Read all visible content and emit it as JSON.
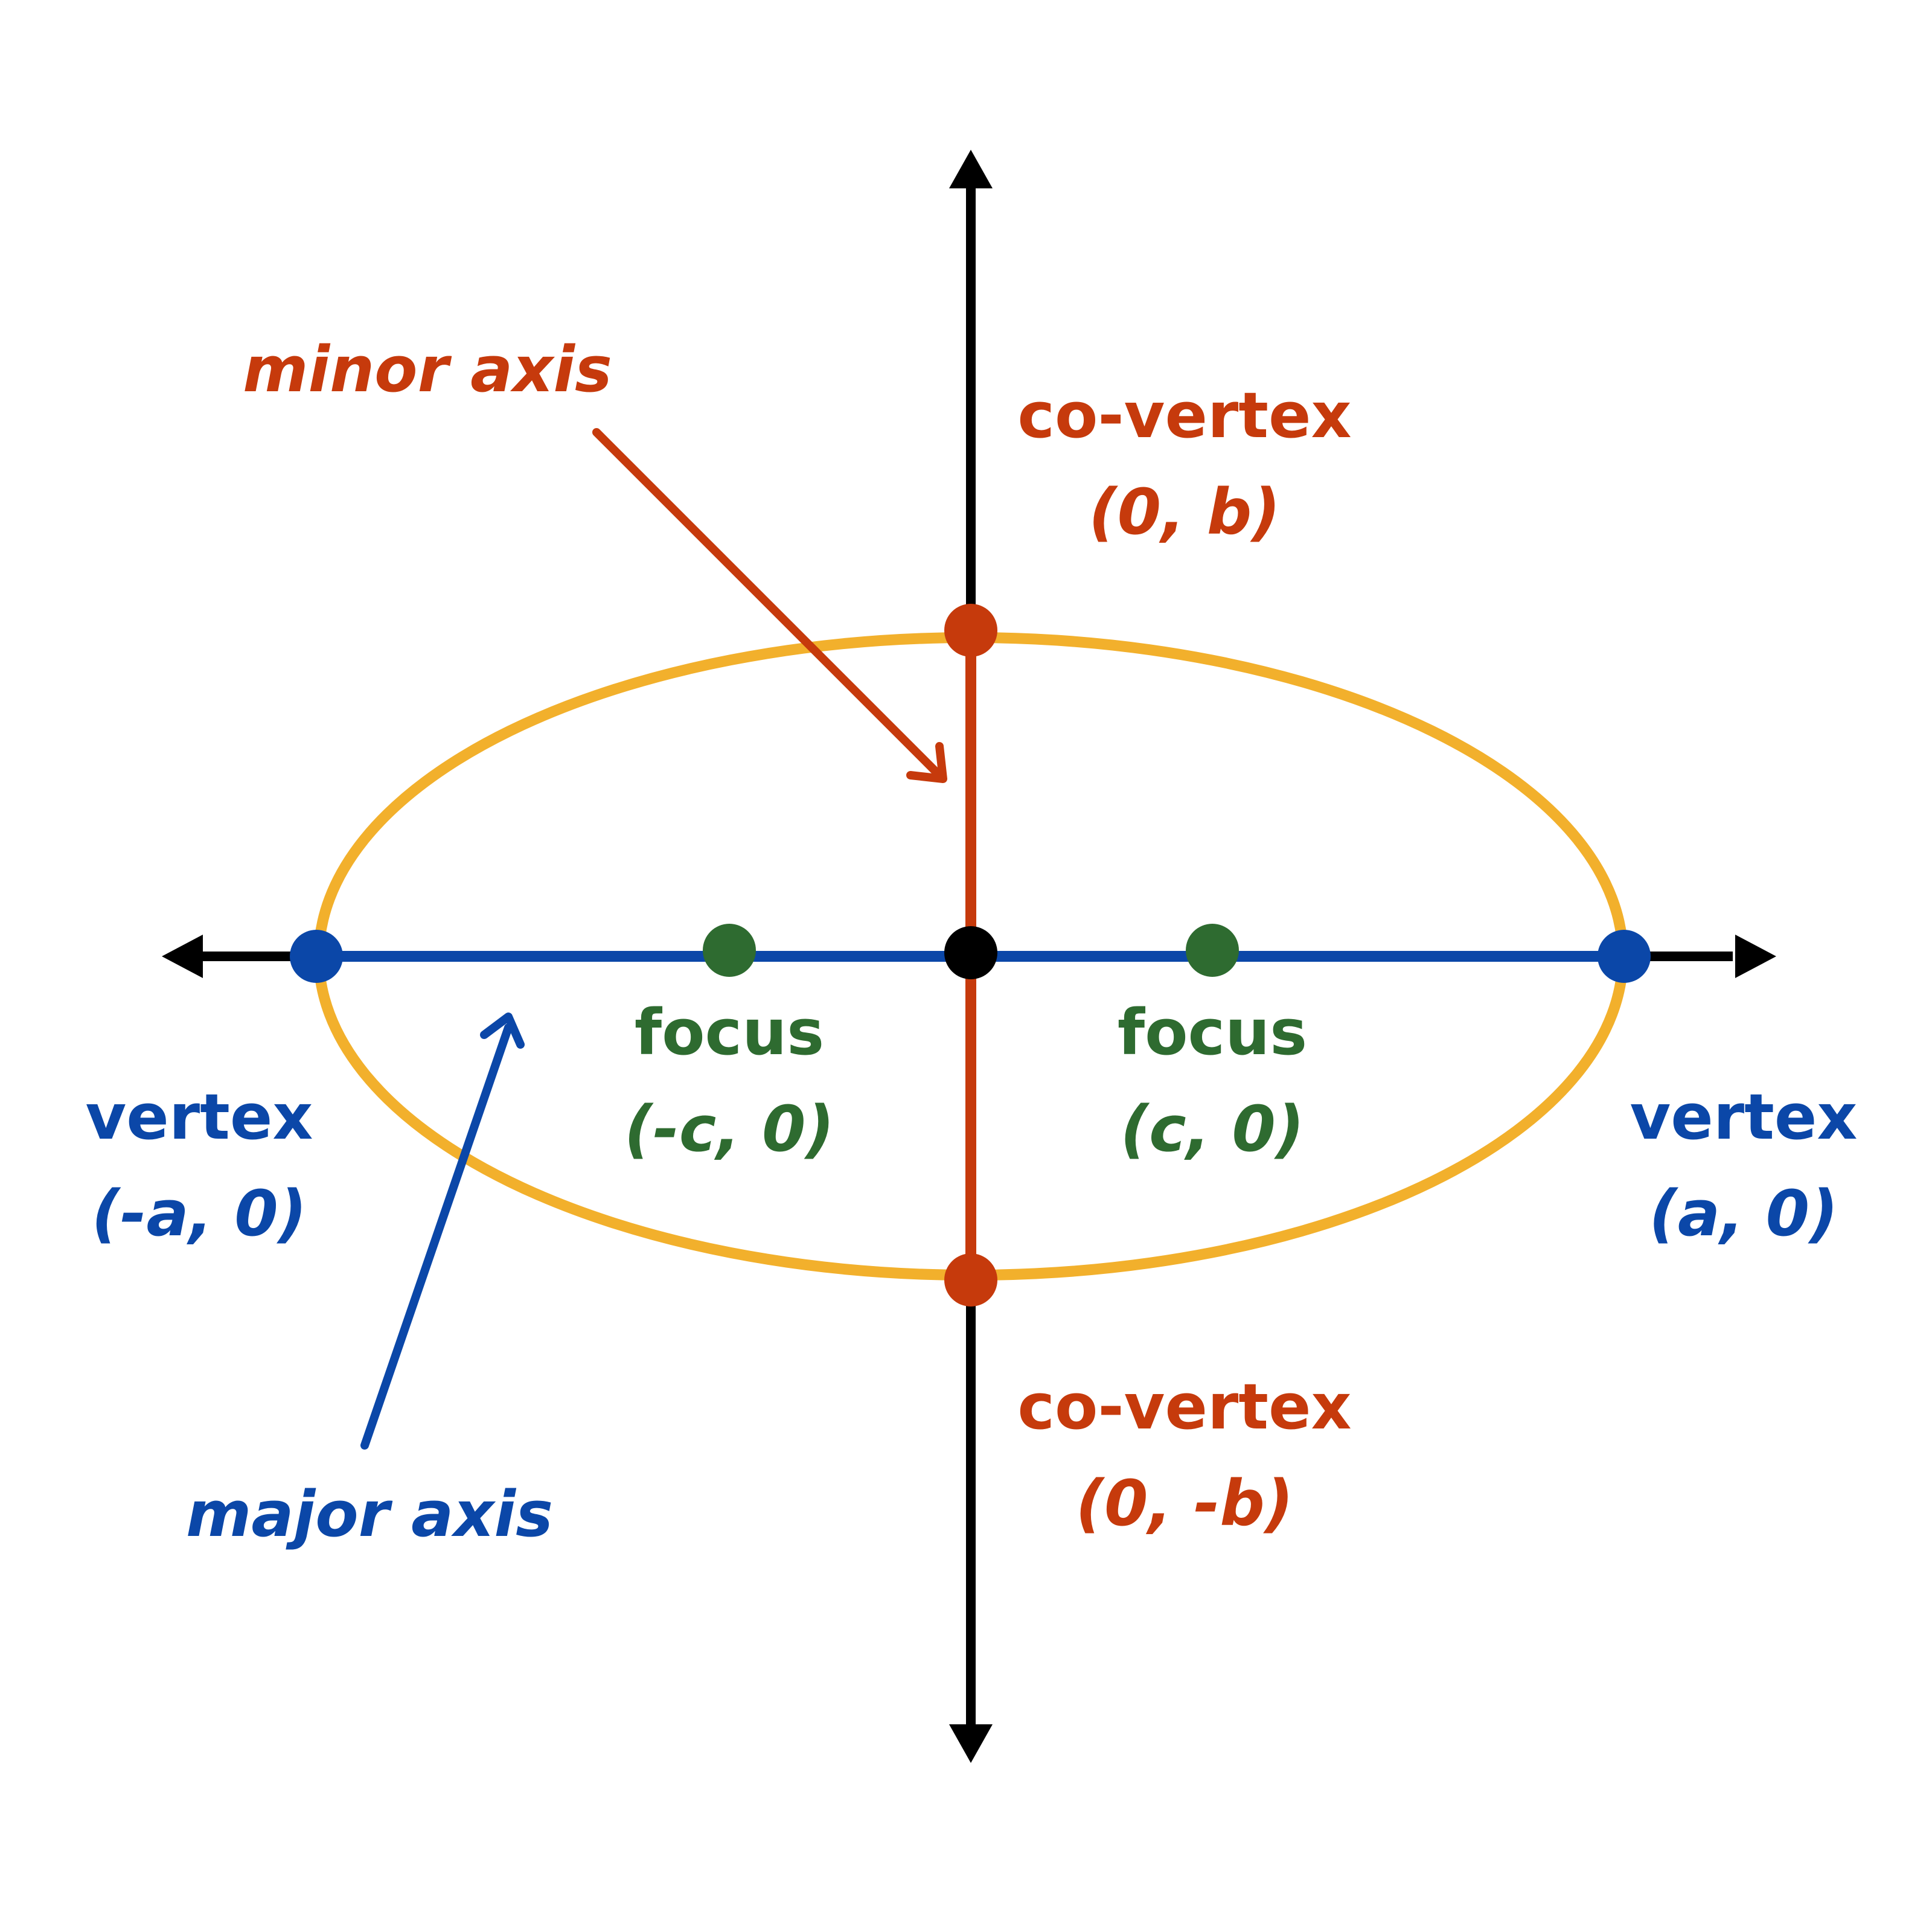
{
  "colors": {
    "background": "#ffffff",
    "axis": "#000000",
    "ellipse": "#f2b02c",
    "major_axis": "#0b47a8",
    "minor_axis": "#c63a0c",
    "focus": "#2e6b30",
    "center": "#000000"
  },
  "labels": {
    "minor_axis": "minor axis",
    "major_axis": "major axis",
    "co_vertex_top_name": "co-vertex",
    "co_vertex_top_coord": "(0, b)",
    "co_vertex_bottom_name": "co-vertex",
    "co_vertex_bottom_coord": "(0, -b)",
    "vertex_left_name": "vertex",
    "vertex_left_coord": "(-a, 0)",
    "vertex_right_name": "vertex",
    "vertex_right_coord": "(a, 0)",
    "focus_left_name": "focus",
    "focus_left_coord": "(-c, 0)",
    "focus_right_name": "focus",
    "focus_right_coord": "(c, 0)"
  }
}
